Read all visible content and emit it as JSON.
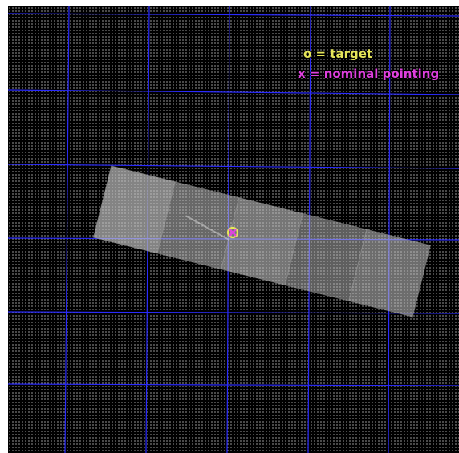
{
  "legend": {
    "target": {
      "label": "o = target",
      "color": "#e6e65a"
    },
    "pointing": {
      "label": "x = nominal pointing",
      "color": "#e040e0"
    }
  },
  "colors": {
    "background": "#000000",
    "grid": "#2a2aff",
    "footprint": "#c8c8c8"
  },
  "markers": {
    "target_symbol": "circle",
    "pointing_symbol": "cross"
  }
}
